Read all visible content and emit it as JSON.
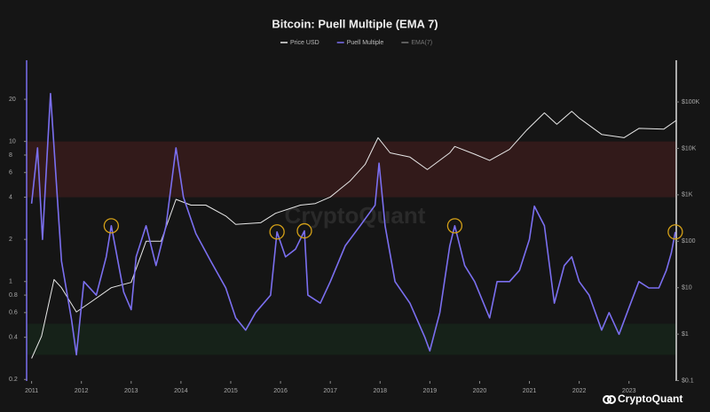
{
  "chart_data": {
    "type": "line",
    "title": "Bitcoin: Puell Multiple (EMA 7)",
    "watermark": "CryptoQuant",
    "logo_text": "CryptoQuant",
    "log_y": true,
    "log_y2": true,
    "xlim": [
      2010.9,
      2023.95
    ],
    "xticks": [
      2011,
      2012,
      2013,
      2014,
      2015,
      2016,
      2017,
      2018,
      2019,
      2020,
      2021,
      2022,
      2023
    ],
    "ylim": [
      0.195,
      38
    ],
    "yticks": [
      0.2,
      0.4,
      0.6,
      0.8,
      1,
      2,
      4,
      6,
      8,
      10,
      20
    ],
    "y2lim": [
      0.098,
      790000
    ],
    "y2ticks": [
      {
        "value": 0.1,
        "label": "$0.1"
      },
      {
        "value": 1,
        "label": "$1"
      },
      {
        "value": 10,
        "label": "$10"
      },
      {
        "value": 100,
        "label": "$100"
      },
      {
        "value": 1000,
        "label": "$1K"
      },
      {
        "value": 10000,
        "label": "$10K"
      },
      {
        "value": 100000,
        "label": "$100K"
      }
    ],
    "bands": [
      {
        "from": 4,
        "to": 10,
        "color": "#3a1b1b"
      },
      {
        "from": 0.3,
        "to": 0.5,
        "color": "#17261a"
      }
    ],
    "legend": [
      "Price USD",
      "Puell Multiple",
      "EMA(7)"
    ],
    "series": [
      {
        "name": "Price USD",
        "color": "#e8e8e8",
        "axis": "y2",
        "x": [
          2011.0,
          2011.2,
          2011.45,
          2011.6,
          2011.9,
          2012.2,
          2012.6,
          2013.0,
          2013.3,
          2013.6,
          2013.9,
          2014.2,
          2014.5,
          2014.9,
          2015.1,
          2015.6,
          2015.9,
          2016.4,
          2016.7,
          2017.0,
          2017.4,
          2017.7,
          2017.96,
          2018.2,
          2018.6,
          2018.95,
          2019.4,
          2019.5,
          2019.9,
          2020.2,
          2020.6,
          2020.95,
          2021.3,
          2021.55,
          2021.85,
          2022.0,
          2022.45,
          2022.9,
          2023.2,
          2023.7,
          2023.95
        ],
        "values": [
          0.3,
          0.9,
          15,
          10,
          3,
          5,
          10,
          13,
          100,
          100,
          800,
          600,
          600,
          350,
          230,
          250,
          400,
          600,
          650,
          900,
          2000,
          4500,
          17000,
          8000,
          6500,
          3500,
          8000,
          11000,
          7500,
          5500,
          9500,
          25000,
          58000,
          33000,
          63000,
          45000,
          20000,
          17000,
          27000,
          26000,
          40000
        ]
      },
      {
        "name": "Puell Multiple",
        "color": "#7b6ff0",
        "axis": "y",
        "x": [
          2011.0,
          2011.12,
          2011.22,
          2011.38,
          2011.6,
          2011.8,
          2011.9,
          2012.05,
          2012.3,
          2012.5,
          2012.6,
          2012.85,
          2013.0,
          2013.1,
          2013.3,
          2013.5,
          2013.7,
          2013.9,
          2014.05,
          2014.3,
          2014.6,
          2014.9,
          2015.1,
          2015.3,
          2015.5,
          2015.8,
          2015.93,
          2016.1,
          2016.3,
          2016.48,
          2016.55,
          2016.8,
          2017.0,
          2017.3,
          2017.6,
          2017.9,
          2017.98,
          2018.1,
          2018.3,
          2018.6,
          2018.9,
          2019.0,
          2019.2,
          2019.4,
          2019.5,
          2019.7,
          2019.9,
          2020.2,
          2020.35,
          2020.6,
          2020.8,
          2021.0,
          2021.1,
          2021.3,
          2021.5,
          2021.7,
          2021.85,
          2022.0,
          2022.2,
          2022.45,
          2022.6,
          2022.8,
          2023.0,
          2023.2,
          2023.4,
          2023.6,
          2023.75,
          2023.85,
          2023.93
        ],
        "values": [
          3.6,
          9,
          2,
          22,
          1.4,
          0.54,
          0.3,
          1,
          0.8,
          1.5,
          2.5,
          0.84,
          0.63,
          1.5,
          2.5,
          1.3,
          2.5,
          9,
          4,
          2.2,
          1.4,
          0.9,
          0.55,
          0.45,
          0.6,
          0.8,
          2.26,
          1.5,
          1.7,
          2.3,
          0.8,
          0.7,
          1.0,
          1.8,
          2.5,
          3.5,
          7,
          2.5,
          1.0,
          0.7,
          0.4,
          0.32,
          0.6,
          1.8,
          2.5,
          1.3,
          1.0,
          0.55,
          1.0,
          1.0,
          1.2,
          2.0,
          3.45,
          2.5,
          0.7,
          1.3,
          1.5,
          1.0,
          0.8,
          0.45,
          0.6,
          0.42,
          0.65,
          1.0,
          0.9,
          0.9,
          1.2,
          1.6,
          2.26
        ]
      }
    ],
    "highlights": {
      "color": "#d4a017",
      "x": [
        2012.6,
        2015.93,
        2016.48,
        2019.5,
        2023.93
      ],
      "values": [
        2.5,
        2.26,
        2.3,
        2.5,
        2.26
      ]
    }
  }
}
